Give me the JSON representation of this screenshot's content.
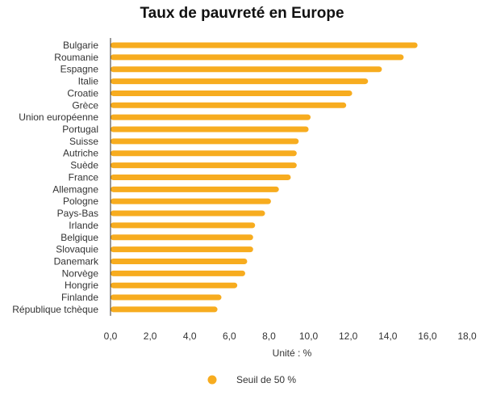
{
  "chart_data": {
    "type": "bar",
    "orientation": "horizontal",
    "title": "Taux de pauvreté en Europe",
    "xlabel": "Unité : %",
    "ylabel": "",
    "xlim": [
      0,
      18
    ],
    "x_ticks": [
      "0,0",
      "2,0",
      "4,0",
      "6,0",
      "8,0",
      "10,0",
      "12,0",
      "14,0",
      "16,0",
      "18,0"
    ],
    "categories": [
      "Bulgarie",
      "Roumanie",
      "Espagne",
      "Italie",
      "Croatie",
      "Grèce",
      "Union européenne",
      "Portugal",
      "Suisse",
      "Autriche",
      "Suède",
      "France",
      "Allemagne",
      "Pologne",
      "Pays-Bas",
      "Irlande",
      "Belgique",
      "Slovaquie",
      "Danemark",
      "Norvège",
      "Hongrie",
      "Finlande",
      "République tchèque"
    ],
    "series": [
      {
        "name": "Seuil de 50 %",
        "color": "#f7ac1f",
        "values": [
          15.5,
          14.8,
          13.7,
          13.0,
          12.2,
          11.9,
          10.1,
          10.0,
          9.5,
          9.4,
          9.4,
          9.1,
          8.5,
          8.1,
          7.8,
          7.3,
          7.2,
          7.2,
          6.9,
          6.8,
          6.4,
          5.6,
          5.4
        ]
      }
    ],
    "grid": false,
    "legend_position": "bottom"
  }
}
